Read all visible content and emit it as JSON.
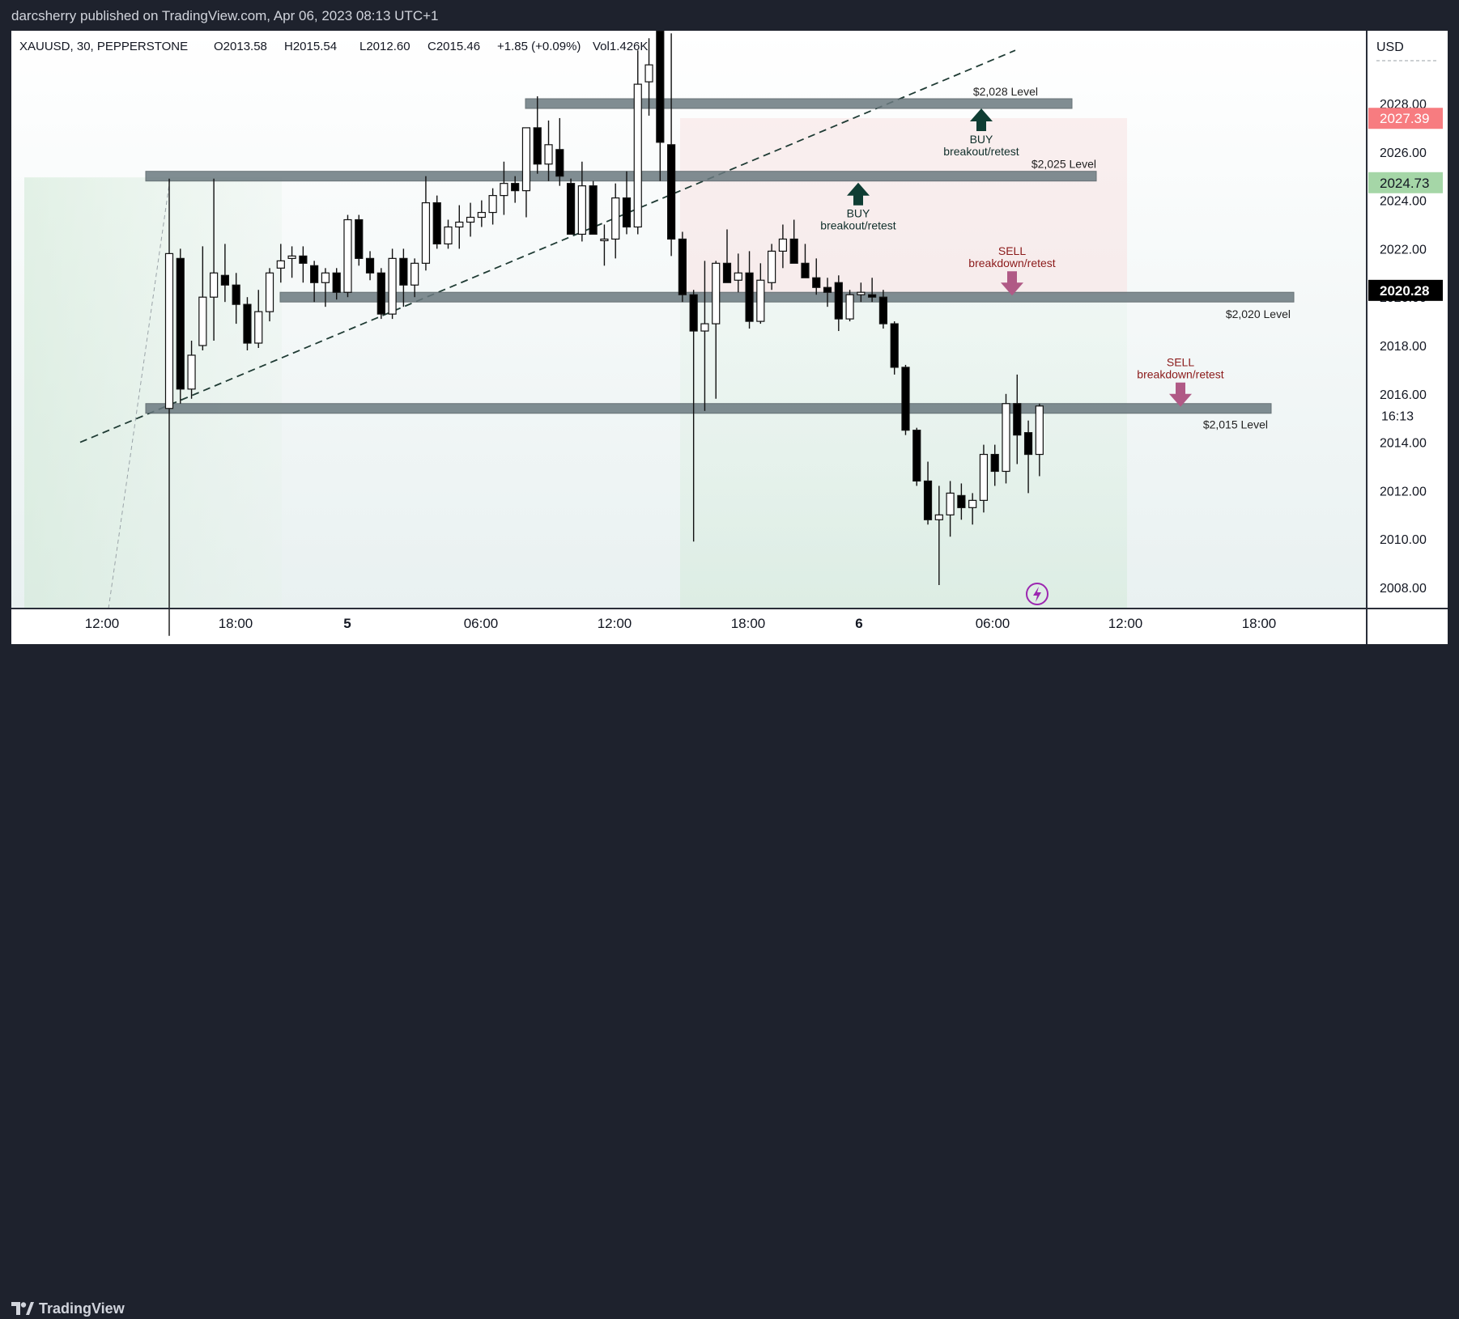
{
  "header": {
    "publisher_line": "darcsherry published on TradingView.com, Apr 06, 2023 08:13 UTC+1"
  },
  "footer": {
    "brand": "TradingView"
  },
  "colors": {
    "bull": "#ffffff",
    "bear": "#000000",
    "zone": "#6b7a80",
    "buy_arrow": "#0f3d33",
    "sell_arrow": "#b05a86",
    "sell_text": "#8b1a1a",
    "red_label": "#f77c80",
    "green_label": "#a5d6a7"
  },
  "chart_data": {
    "type": "candlestick",
    "symbol_line": {
      "symbol": "XAUUSD, 30, PEPPERSTONE",
      "open": "O2013.58",
      "high": "H2015.54",
      "low": "L2012.60",
      "close": "C2015.46",
      "change": "+1.85 (+0.09%)",
      "volume": "Vol1.426K"
    },
    "currency": "USD",
    "y_ticks": [
      "2028.00",
      "2026.00",
      "2024.00",
      "2022.00",
      "2020.00",
      "2018.00",
      "2016.00",
      "2014.00",
      "2012.00",
      "2010.00",
      "2008.00"
    ],
    "ylim": [
      2007.2,
      2031.0
    ],
    "x_ticks": [
      "12:00",
      "18:00",
      "5",
      "06:00",
      "12:00",
      "18:00",
      "6",
      "06:00",
      "12:00",
      "18:00"
    ],
    "candles": [
      {
        "o": 2015.4,
        "h": 2024.9,
        "l": 2006.0,
        "c": 2021.8
      },
      {
        "o": 2021.6,
        "h": 2022.0,
        "l": 2015.6,
        "c": 2016.2
      },
      {
        "o": 2016.2,
        "h": 2018.2,
        "l": 2015.8,
        "c": 2017.6
      },
      {
        "o": 2018.0,
        "h": 2022.1,
        "l": 2017.8,
        "c": 2020.0
      },
      {
        "o": 2020.0,
        "h": 2024.9,
        "l": 2018.2,
        "c": 2021.0
      },
      {
        "o": 2020.9,
        "h": 2022.2,
        "l": 2019.8,
        "c": 2020.5
      },
      {
        "o": 2020.5,
        "h": 2021.0,
        "l": 2018.9,
        "c": 2019.7
      },
      {
        "o": 2019.7,
        "h": 2020.0,
        "l": 2017.8,
        "c": 2018.1
      },
      {
        "o": 2018.1,
        "h": 2020.3,
        "l": 2017.9,
        "c": 2019.4
      },
      {
        "o": 2019.4,
        "h": 2021.2,
        "l": 2019.0,
        "c": 2021.0
      },
      {
        "o": 2021.2,
        "h": 2022.2,
        "l": 2020.6,
        "c": 2021.5
      },
      {
        "o": 2021.6,
        "h": 2022.1,
        "l": 2020.8,
        "c": 2021.7
      },
      {
        "o": 2021.7,
        "h": 2022.1,
        "l": 2020.6,
        "c": 2021.4
      },
      {
        "o": 2021.3,
        "h": 2021.5,
        "l": 2019.8,
        "c": 2020.6
      },
      {
        "o": 2020.6,
        "h": 2021.2,
        "l": 2019.6,
        "c": 2021.0
      },
      {
        "o": 2021.0,
        "h": 2021.2,
        "l": 2019.9,
        "c": 2020.2
      },
      {
        "o": 2020.2,
        "h": 2023.4,
        "l": 2020.0,
        "c": 2023.2
      },
      {
        "o": 2023.2,
        "h": 2023.4,
        "l": 2021.3,
        "c": 2021.6
      },
      {
        "o": 2021.6,
        "h": 2021.9,
        "l": 2020.7,
        "c": 2021.0
      },
      {
        "o": 2021.0,
        "h": 2021.2,
        "l": 2019.1,
        "c": 2019.3
      },
      {
        "o": 2019.3,
        "h": 2022.0,
        "l": 2019.1,
        "c": 2021.6
      },
      {
        "o": 2021.6,
        "h": 2022.0,
        "l": 2019.6,
        "c": 2020.5
      },
      {
        "o": 2020.5,
        "h": 2021.6,
        "l": 2020.0,
        "c": 2021.4
      },
      {
        "o": 2021.4,
        "h": 2025.0,
        "l": 2021.1,
        "c": 2023.9
      },
      {
        "o": 2023.9,
        "h": 2024.2,
        "l": 2022.0,
        "c": 2022.2
      },
      {
        "o": 2022.2,
        "h": 2023.2,
        "l": 2022.0,
        "c": 2022.9
      },
      {
        "o": 2022.9,
        "h": 2023.8,
        "l": 2022.0,
        "c": 2023.1
      },
      {
        "o": 2023.1,
        "h": 2023.9,
        "l": 2022.5,
        "c": 2023.3
      },
      {
        "o": 2023.3,
        "h": 2024.0,
        "l": 2022.9,
        "c": 2023.5
      },
      {
        "o": 2023.5,
        "h": 2024.5,
        "l": 2023.0,
        "c": 2024.2
      },
      {
        "o": 2024.2,
        "h": 2025.6,
        "l": 2023.4,
        "c": 2024.7
      },
      {
        "o": 2024.7,
        "h": 2025.0,
        "l": 2023.9,
        "c": 2024.4
      },
      {
        "o": 2024.4,
        "h": 2026.8,
        "l": 2023.3,
        "c": 2027.0
      },
      {
        "o": 2027.0,
        "h": 2028.3,
        "l": 2025.1,
        "c": 2025.5
      },
      {
        "o": 2025.5,
        "h": 2027.3,
        "l": 2024.8,
        "c": 2026.3
      },
      {
        "o": 2026.1,
        "h": 2027.4,
        "l": 2024.6,
        "c": 2025.0
      },
      {
        "o": 2024.7,
        "h": 2024.9,
        "l": 2022.8,
        "c": 2022.6
      },
      {
        "o": 2022.6,
        "h": 2025.6,
        "l": 2022.3,
        "c": 2024.6
      },
      {
        "o": 2024.6,
        "h": 2024.8,
        "l": 2022.8,
        "c": 2022.6
      },
      {
        "o": 2022.4,
        "h": 2023.0,
        "l": 2021.3,
        "c": 2022.4
      },
      {
        "o": 2022.4,
        "h": 2024.7,
        "l": 2021.6,
        "c": 2024.1
      },
      {
        "o": 2024.1,
        "h": 2025.2,
        "l": 2022.6,
        "c": 2022.9
      },
      {
        "o": 2022.9,
        "h": 2030.2,
        "l": 2022.6,
        "c": 2028.8
      },
      {
        "o": 2028.9,
        "h": 2030.7,
        "l": 2027.5,
        "c": 2029.6
      },
      {
        "o": 2031.0,
        "h": 2031.0,
        "l": 2024.8,
        "c": 2026.4
      },
      {
        "o": 2026.3,
        "h": 2030.9,
        "l": 2021.7,
        "c": 2022.4
      },
      {
        "o": 2022.4,
        "h": 2022.7,
        "l": 2019.8,
        "c": 2020.1
      },
      {
        "o": 2020.1,
        "h": 2020.3,
        "l": 2009.9,
        "c": 2018.6
      },
      {
        "o": 2018.6,
        "h": 2021.5,
        "l": 2015.3,
        "c": 2018.9
      },
      {
        "o": 2018.9,
        "h": 2021.5,
        "l": 2015.8,
        "c": 2021.4
      },
      {
        "o": 2021.4,
        "h": 2022.8,
        "l": 2020.6,
        "c": 2020.6
      },
      {
        "o": 2020.7,
        "h": 2021.8,
        "l": 2020.2,
        "c": 2021.0
      },
      {
        "o": 2021.0,
        "h": 2021.9,
        "l": 2018.7,
        "c": 2019.0
      },
      {
        "o": 2019.0,
        "h": 2021.4,
        "l": 2018.9,
        "c": 2020.7
      },
      {
        "o": 2020.6,
        "h": 2022.2,
        "l": 2020.3,
        "c": 2021.9
      },
      {
        "o": 2021.9,
        "h": 2023.0,
        "l": 2021.2,
        "c": 2022.4
      },
      {
        "o": 2022.4,
        "h": 2023.2,
        "l": 2021.4,
        "c": 2021.4
      },
      {
        "o": 2021.4,
        "h": 2022.2,
        "l": 2020.9,
        "c": 2020.8
      },
      {
        "o": 2020.8,
        "h": 2021.6,
        "l": 2020.1,
        "c": 2020.4
      },
      {
        "o": 2020.4,
        "h": 2020.8,
        "l": 2019.6,
        "c": 2020.2
      },
      {
        "o": 2020.6,
        "h": 2020.9,
        "l": 2018.6,
        "c": 2019.1
      },
      {
        "o": 2019.1,
        "h": 2020.3,
        "l": 2019.0,
        "c": 2020.1
      },
      {
        "o": 2020.1,
        "h": 2020.6,
        "l": 2019.8,
        "c": 2020.2
      },
      {
        "o": 2020.1,
        "h": 2020.8,
        "l": 2019.8,
        "c": 2020.0
      },
      {
        "o": 2020.0,
        "h": 2020.3,
        "l": 2018.7,
        "c": 2018.9
      },
      {
        "o": 2018.9,
        "h": 2019.0,
        "l": 2016.8,
        "c": 2017.1
      },
      {
        "o": 2017.1,
        "h": 2017.2,
        "l": 2014.3,
        "c": 2014.5
      },
      {
        "o": 2014.5,
        "h": 2014.6,
        "l": 2012.2,
        "c": 2012.4
      },
      {
        "o": 2012.4,
        "h": 2013.2,
        "l": 2010.6,
        "c": 2010.8
      },
      {
        "o": 2010.8,
        "h": 2012.2,
        "l": 2008.1,
        "c": 2011.0
      },
      {
        "o": 2011.0,
        "h": 2012.4,
        "l": 2010.1,
        "c": 2011.9
      },
      {
        "o": 2011.8,
        "h": 2012.3,
        "l": 2010.8,
        "c": 2011.3
      },
      {
        "o": 2011.3,
        "h": 2011.9,
        "l": 2010.6,
        "c": 2011.6
      },
      {
        "o": 2011.6,
        "h": 2013.9,
        "l": 2011.1,
        "c": 2013.5
      },
      {
        "o": 2013.5,
        "h": 2013.9,
        "l": 2012.2,
        "c": 2012.8
      },
      {
        "o": 2012.8,
        "h": 2016.0,
        "l": 2012.3,
        "c": 2015.6
      },
      {
        "o": 2015.6,
        "h": 2016.8,
        "l": 2013.1,
        "c": 2014.3
      },
      {
        "o": 2014.4,
        "h": 2014.9,
        "l": 2011.9,
        "c": 2013.5
      },
      {
        "o": 2013.5,
        "h": 2015.6,
        "l": 2012.6,
        "c": 2015.5
      }
    ],
    "levels": [
      {
        "label": "$2,028 Level",
        "price": 2028.0
      },
      {
        "label": "$2,025 Level",
        "price": 2025.0
      },
      {
        "label": "$2,020 Level",
        "price": 2020.0
      },
      {
        "label": "$2,015 Level",
        "price": 2015.4
      }
    ],
    "annotations": [
      {
        "kind": "buy",
        "title": "BUY",
        "text": "breakout/retest",
        "level": "$2,028 Level"
      },
      {
        "kind": "buy",
        "title": "BUY",
        "text": "breakout/retest",
        "level": "$2,025 Level"
      },
      {
        "kind": "sell",
        "title": "SELL",
        "text": "breakdown/retest",
        "level": "$2,020 Level"
      },
      {
        "kind": "sell",
        "title": "SELL",
        "text": "breakdown/retest",
        "level": "$2,015 Level"
      }
    ],
    "price_labels": [
      {
        "value": "2027.39",
        "style": "red"
      },
      {
        "value": "2024.73",
        "style": "green"
      },
      {
        "value": "2020.28",
        "style": "black"
      },
      {
        "value": "16:13",
        "style": "countdown"
      }
    ]
  }
}
